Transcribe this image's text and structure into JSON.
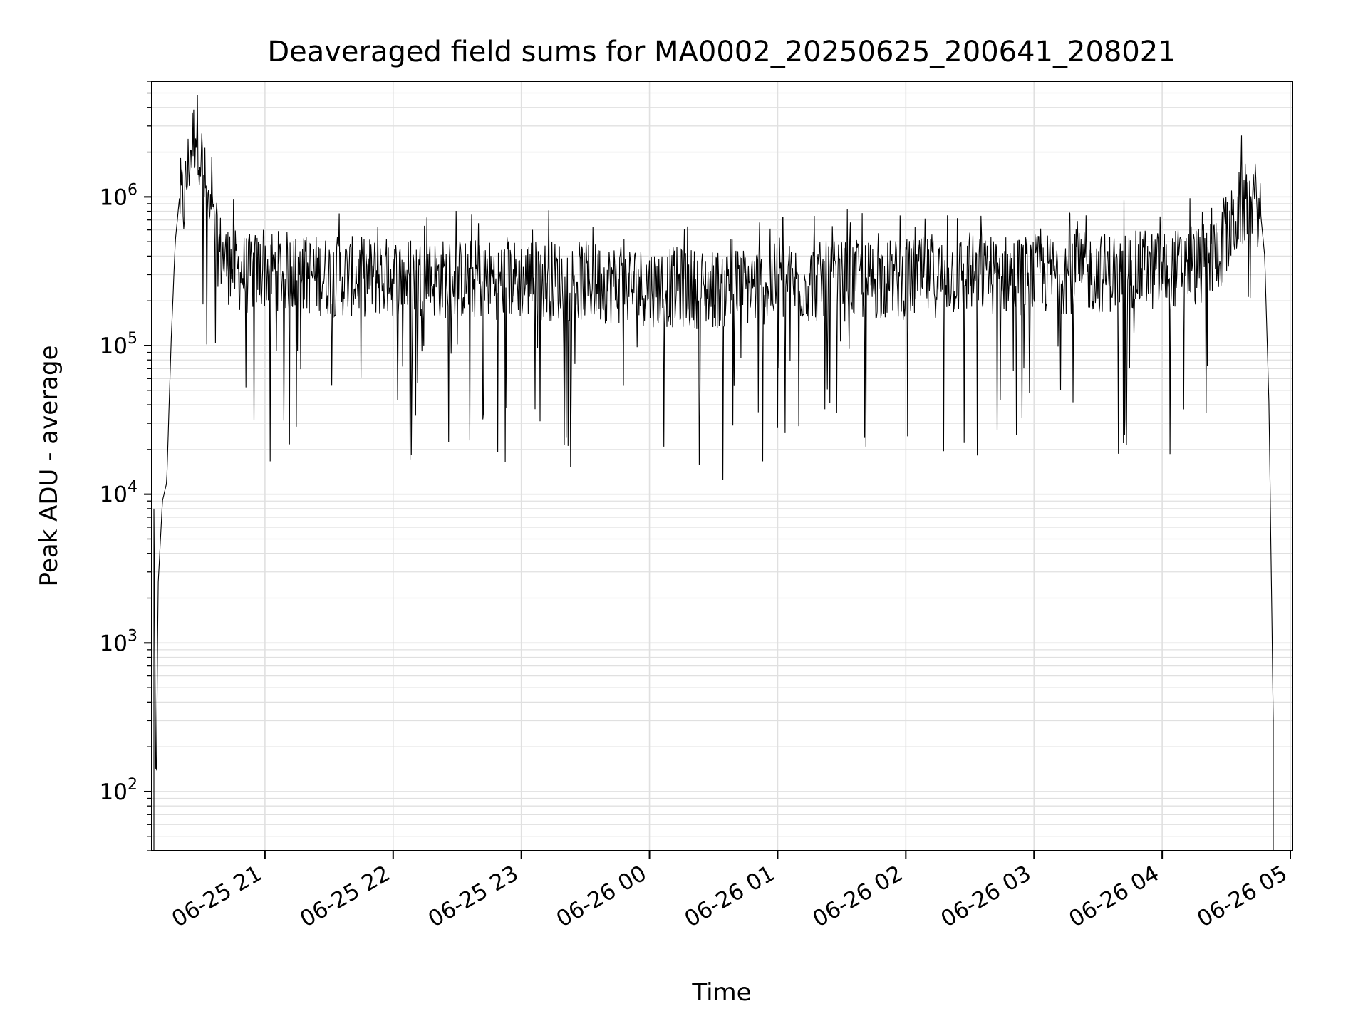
{
  "chart_data": {
    "type": "line",
    "title": "Deaveraged field sums for MA0002_20250625_200641_208021",
    "xlabel": "Time",
    "ylabel": "Peak ADU - average",
    "y_scale": "log",
    "ylim": [
      40,
      6000000
    ],
    "xlim": [
      "2025-06-25 20:07",
      "2025-06-26 05:01"
    ],
    "x_ticks": [
      {
        "date": "2025-06-25 21:00",
        "label": "06-25 21"
      },
      {
        "date": "2025-06-25 22:00",
        "label": "06-25 22"
      },
      {
        "date": "2025-06-25 23:00",
        "label": "06-25 23"
      },
      {
        "date": "2025-06-26 00:00",
        "label": "06-26 00"
      },
      {
        "date": "2025-06-26 01:00",
        "label": "06-26 01"
      },
      {
        "date": "2025-06-26 02:00",
        "label": "06-26 02"
      },
      {
        "date": "2025-06-26 03:00",
        "label": "06-26 03"
      },
      {
        "date": "2025-06-26 04:00",
        "label": "06-26 04"
      },
      {
        "date": "2025-06-26 05:00",
        "label": "06-26 05"
      }
    ],
    "y_ticks": [
      {
        "value": 100,
        "base": "10",
        "exp": "2"
      },
      {
        "value": 1000,
        "base": "10",
        "exp": "3"
      },
      {
        "value": 10000,
        "base": "10",
        "exp": "4"
      },
      {
        "value": 100000,
        "base": "10",
        "exp": "5"
      },
      {
        "value": 1000000,
        "base": "10",
        "exp": "6"
      }
    ],
    "grid": true,
    "grid_minor": true,
    "line_color": "#000000",
    "grid_color": "#e0e0e0",
    "series": [
      {
        "x": [
          "2025-06-25 20:08",
          "2025-06-25 20:09",
          "2025-06-25 20:10",
          "2025-06-25 20:12",
          "2025-06-25 20:14",
          "2025-06-25 20:16",
          "2025-06-25 20:18",
          "2025-06-25 20:20",
          "2025-06-25 20:22",
          "2025-06-25 20:25",
          "2025-06-25 20:28",
          "2025-06-25 20:31",
          "2025-06-25 20:34",
          "2025-06-25 20:37",
          "2025-06-25 20:40",
          "2025-06-25 20:43",
          "2025-06-25 20:47",
          "2025-06-25 20:52",
          "2025-06-25 21:00",
          "2025-06-25 21:20",
          "2025-06-25 21:40",
          "2025-06-25 22:00",
          "2025-06-25 22:30",
          "2025-06-25 23:00",
          "2025-06-25 23:30",
          "2025-06-26 00:00",
          "2025-06-26 00:30",
          "2025-06-26 01:00",
          "2025-06-26 01:30",
          "2025-06-26 02:00",
          "2025-06-26 02:30",
          "2025-06-26 03:00",
          "2025-06-26 03:30",
          "2025-06-26 04:00",
          "2025-06-26 04:20",
          "2025-06-26 04:30",
          "2025-06-26 04:36",
          "2025-06-26 04:42",
          "2025-06-26 04:46",
          "2025-06-26 04:48",
          "2025-06-26 04:50",
          "2025-06-26 04:52"
        ],
        "values": [
          8000,
          80,
          2500,
          9000,
          12000,
          100000,
          500000,
          1000000,
          900000,
          2000000,
          3000000,
          1500000,
          700000,
          500000,
          400000,
          350000,
          320000,
          300000,
          330000,
          300000,
          290000,
          290000,
          280000,
          280000,
          270000,
          250000,
          240000,
          260000,
          270000,
          280000,
          300000,
          300000,
          310000,
          320000,
          350000,
          500000,
          800000,
          1000000,
          800000,
          400000,
          40000,
          300
        ]
      }
    ]
  }
}
